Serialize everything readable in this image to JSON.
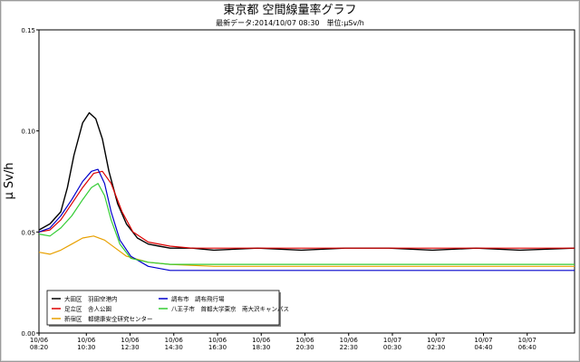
{
  "chart_data": {
    "type": "line",
    "title": "東京都 空間線量率グラフ",
    "subtitle": "最新データ:2014/10/07 08:30　単位:μSv/h",
    "ylabel": "μ Sv/h",
    "xlabel": "",
    "ylim": [
      0,
      0.15
    ],
    "yticks": [
      "0.00",
      "0.05",
      "0.10",
      "0.15"
    ],
    "xlim_hours": [
      0,
      24.5
    ],
    "xticks": [
      {
        "date": "10/06",
        "time": "08:20"
      },
      {
        "date": "10/06",
        "time": "10:30"
      },
      {
        "date": "10/06",
        "time": "12:30"
      },
      {
        "date": "10/06",
        "time": "14:30"
      },
      {
        "date": "10/06",
        "time": "16:30"
      },
      {
        "date": "10/06",
        "time": "18:30"
      },
      {
        "date": "10/06",
        "time": "20:30"
      },
      {
        "date": "10/06",
        "time": "22:30"
      },
      {
        "date": "10/07",
        "time": "00:30"
      },
      {
        "date": "10/07",
        "time": "02:30"
      },
      {
        "date": "10/07",
        "time": "04:40"
      },
      {
        "date": "10/07",
        "time": "06:40"
      }
    ],
    "xtick_hours": [
      0,
      2.1667,
      4.1667,
      6.1667,
      8.1667,
      10.1667,
      12.1667,
      14.1667,
      16.1667,
      18.1667,
      20.3333,
      22.3333
    ],
    "grid": false,
    "legend_position": "bottom-left",
    "series": [
      {
        "name": "大田区　羽田空港内",
        "color": "#000000",
        "x": [
          0,
          0.5,
          1,
          1.3,
          1.6,
          2.0,
          2.3,
          2.6,
          2.9,
          3.2,
          3.6,
          4.0,
          4.5,
          5.0,
          5.5,
          6.0,
          7.0,
          8.0,
          10.0,
          12.0,
          14.0,
          16.0,
          18.0,
          20.0,
          22.0,
          24.5
        ],
        "y": [
          0.051,
          0.054,
          0.06,
          0.072,
          0.088,
          0.104,
          0.109,
          0.106,
          0.096,
          0.08,
          0.064,
          0.054,
          0.047,
          0.044,
          0.043,
          0.042,
          0.042,
          0.041,
          0.042,
          0.041,
          0.042,
          0.042,
          0.041,
          0.042,
          0.041,
          0.042
        ]
      },
      {
        "name": "足立区　舎人公園",
        "color": "#dd0000",
        "x": [
          0,
          0.5,
          1,
          1.5,
          2.0,
          2.5,
          2.9,
          3.3,
          3.8,
          4.3,
          5.0,
          6.0,
          7.0,
          8.0,
          10.0,
          12.0,
          14.0,
          16.0,
          18.0,
          20.0,
          22.0,
          24.5
        ],
        "y": [
          0.05,
          0.051,
          0.056,
          0.064,
          0.072,
          0.079,
          0.08,
          0.074,
          0.06,
          0.05,
          0.045,
          0.043,
          0.042,
          0.042,
          0.042,
          0.042,
          0.042,
          0.042,
          0.042,
          0.042,
          0.042,
          0.042
        ]
      },
      {
        "name": "新宿区　都健康安全研究センター",
        "color": "#e8a000",
        "x": [
          0,
          0.5,
          1,
          1.5,
          2.0,
          2.5,
          3.0,
          3.5,
          4.0,
          5.0,
          6.0,
          8.0,
          10.0,
          12.0,
          14.0,
          16.0,
          18.0,
          20.0,
          22.0,
          24.5
        ],
        "y": [
          0.04,
          0.039,
          0.041,
          0.044,
          0.047,
          0.048,
          0.046,
          0.042,
          0.038,
          0.035,
          0.034,
          0.033,
          0.033,
          0.033,
          0.033,
          0.033,
          0.033,
          0.033,
          0.033,
          0.033
        ]
      },
      {
        "name": "調布市　調布飛行場",
        "color": "#0000cc",
        "x": [
          0,
          0.5,
          1,
          1.5,
          2.0,
          2.4,
          2.7,
          3.0,
          3.3,
          3.7,
          4.2,
          5.0,
          6.0,
          8.0,
          10.0,
          12.0,
          14.0,
          16.0,
          18.0,
          20.0,
          22.0,
          24.5
        ],
        "y": [
          0.05,
          0.052,
          0.058,
          0.066,
          0.075,
          0.08,
          0.081,
          0.074,
          0.06,
          0.046,
          0.038,
          0.033,
          0.031,
          0.031,
          0.031,
          0.031,
          0.031,
          0.031,
          0.031,
          0.031,
          0.031,
          0.031
        ]
      },
      {
        "name": "八王子市　首都大学東京　南大沢キャンパス",
        "color": "#33cc33",
        "x": [
          0,
          0.5,
          1,
          1.5,
          2.0,
          2.4,
          2.7,
          3.0,
          3.3,
          3.7,
          4.2,
          5.0,
          6.0,
          8.0,
          10.0,
          12.0,
          14.0,
          16.0,
          18.0,
          20.0,
          22.0,
          24.5
        ],
        "y": [
          0.049,
          0.048,
          0.052,
          0.058,
          0.066,
          0.072,
          0.074,
          0.068,
          0.056,
          0.044,
          0.037,
          0.035,
          0.034,
          0.034,
          0.034,
          0.034,
          0.034,
          0.034,
          0.034,
          0.034,
          0.034,
          0.034
        ]
      }
    ]
  }
}
